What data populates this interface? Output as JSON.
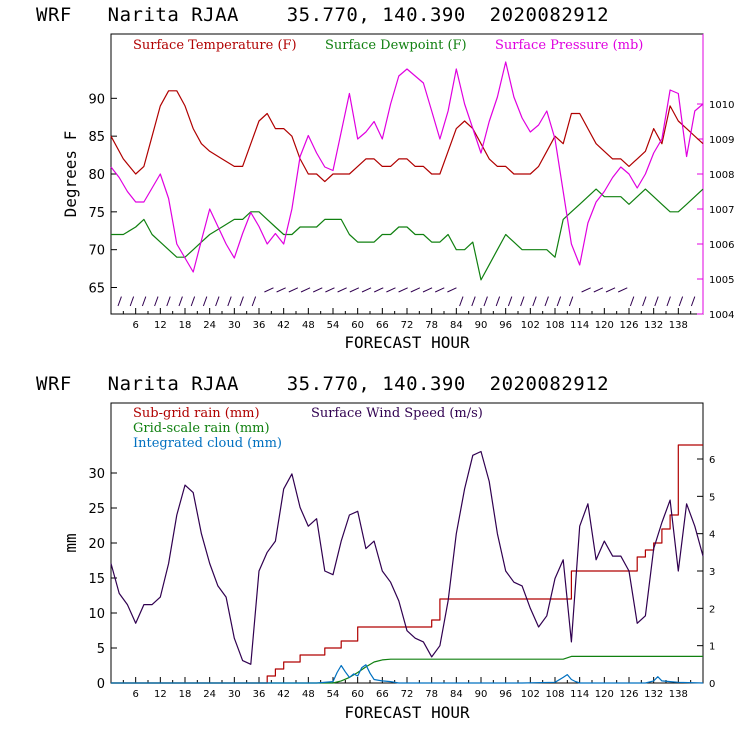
{
  "chart_data": [
    {
      "type": "line",
      "title": "WRF   Narita RJAA    35.770, 140.390  2020082912",
      "xlabel": "FORECAST HOUR",
      "ylabel": "Degrees F",
      "xlim": [
        0,
        144
      ],
      "ylim": [
        61.5,
        98.5
      ],
      "y2lim": [
        1004,
        1012
      ],
      "x_ticks": [
        6,
        12,
        18,
        24,
        30,
        36,
        42,
        48,
        54,
        60,
        66,
        72,
        78,
        84,
        90,
        96,
        102,
        108,
        114,
        120,
        126,
        132,
        138
      ],
      "y_ticks": [
        65,
        70,
        75,
        80,
        85,
        90
      ],
      "y2_ticks": [
        1004,
        1005,
        1006,
        1007,
        1008,
        1009,
        1010
      ],
      "legend": [
        "Surface Temperature (F)",
        "Surface Dewpoint (F)",
        "Surface Pressure (mb)"
      ],
      "series": [
        {
          "name": "Surface Temperature (F)",
          "axis": "left",
          "color": "#b00000",
          "x": [
            0,
            3,
            6,
            8,
            10,
            12,
            14,
            16,
            18,
            20,
            22,
            24,
            27,
            30,
            32,
            34,
            36,
            38,
            40,
            42,
            44,
            46,
            48,
            50,
            52,
            54,
            56,
            58,
            60,
            62,
            64,
            66,
            68,
            70,
            72,
            74,
            76,
            78,
            80,
            82,
            84,
            86,
            88,
            90,
            92,
            94,
            96,
            98,
            100,
            102,
            104,
            106,
            108,
            110,
            112,
            114,
            116,
            118,
            120,
            122,
            124,
            126,
            128,
            130,
            132,
            134,
            136,
            138,
            140,
            142,
            144
          ],
          "y": [
            85,
            82,
            80,
            81,
            85,
            89,
            91,
            91,
            89,
            86,
            84,
            83,
            82,
            81,
            81,
            84,
            87,
            88,
            86,
            86,
            85,
            82,
            80,
            80,
            79,
            80,
            80,
            80,
            81,
            82,
            82,
            81,
            81,
            82,
            82,
            81,
            81,
            80,
            80,
            83,
            86,
            87,
            86,
            84,
            82,
            81,
            81,
            80,
            80,
            80,
            81,
            83,
            85,
            84,
            88,
            88,
            86,
            84,
            83,
            82,
            82,
            81,
            82,
            83,
            86,
            84,
            89,
            87,
            86,
            85,
            84
          ]
        },
        {
          "name": "Surface Dewpoint (F)",
          "axis": "left",
          "color": "#108010",
          "x": [
            0,
            3,
            6,
            8,
            10,
            12,
            14,
            16,
            18,
            20,
            22,
            24,
            27,
            30,
            32,
            34,
            36,
            38,
            40,
            42,
            44,
            46,
            48,
            50,
            52,
            54,
            56,
            58,
            60,
            62,
            64,
            66,
            68,
            70,
            72,
            74,
            76,
            78,
            80,
            82,
            84,
            86,
            88,
            90,
            92,
            94,
            96,
            98,
            100,
            102,
            104,
            106,
            108,
            110,
            112,
            114,
            116,
            118,
            120,
            122,
            124,
            126,
            128,
            130,
            132,
            134,
            136,
            138,
            140,
            142,
            144
          ],
          "y": [
            72,
            72,
            73,
            74,
            72,
            71,
            70,
            69,
            69,
            70,
            71,
            72,
            73,
            74,
            74,
            75,
            75,
            74,
            73,
            72,
            72,
            73,
            73,
            73,
            74,
            74,
            74,
            72,
            71,
            71,
            71,
            72,
            72,
            73,
            73,
            72,
            72,
            71,
            71,
            72,
            70,
            70,
            71,
            66,
            68,
            70,
            72,
            71,
            70,
            70,
            70,
            70,
            69,
            74,
            75,
            76,
            77,
            78,
            77,
            77,
            77,
            76,
            77,
            78,
            77,
            76,
            75,
            75,
            76,
            77,
            78
          ]
        },
        {
          "name": "Surface Pressure (mb)",
          "axis": "right",
          "color": "#e000e0",
          "x": [
            0,
            2,
            4,
            6,
            8,
            10,
            12,
            14,
            16,
            18,
            20,
            22,
            24,
            26,
            28,
            30,
            32,
            34,
            36,
            38,
            40,
            42,
            44,
            46,
            48,
            50,
            52,
            54,
            56,
            58,
            60,
            62,
            64,
            66,
            68,
            70,
            72,
            74,
            76,
            78,
            80,
            82,
            84,
            86,
            88,
            90,
            92,
            94,
            96,
            98,
            100,
            102,
            104,
            106,
            108,
            110,
            112,
            114,
            116,
            118,
            120,
            122,
            124,
            126,
            128,
            130,
            132,
            134,
            136,
            138,
            140,
            142,
            144
          ],
          "y": [
            1008.2,
            1007.9,
            1007.5,
            1007.2,
            1007.2,
            1007.6,
            1008.0,
            1007.3,
            1006.0,
            1005.6,
            1005.2,
            1006.1,
            1007.0,
            1006.5,
            1006.0,
            1005.6,
            1006.3,
            1006.9,
            1006.5,
            1006.0,
            1006.3,
            1006.0,
            1007.0,
            1008.5,
            1009.1,
            1008.6,
            1008.2,
            1008.1,
            1009.2,
            1010.3,
            1009.0,
            1009.2,
            1009.5,
            1009.0,
            1010.0,
            1010.8,
            1011.0,
            1010.8,
            1010.6,
            1009.8,
            1009.0,
            1009.8,
            1011.0,
            1010.0,
            1009.3,
            1008.6,
            1009.5,
            1010.2,
            1011.2,
            1010.2,
            1009.6,
            1009.2,
            1009.4,
            1009.8,
            1009.0,
            1007.5,
            1006.0,
            1005.4,
            1006.6,
            1007.2,
            1007.5,
            1007.9,
            1008.2,
            1008.0,
            1007.6,
            1008.0,
            1008.6,
            1009.0,
            1010.4,
            1010.3,
            1008.5,
            1009.8,
            1010.0
          ]
        }
      ]
    },
    {
      "type": "line",
      "title": "WRF   Narita RJAA    35.770, 140.390  2020082912",
      "xlabel": "FORECAST HOUR",
      "ylabel": "mm",
      "xlim": [
        0,
        144
      ],
      "ylim": [
        0,
        40
      ],
      "y2lim": [
        0,
        7.5
      ],
      "x_ticks": [
        6,
        12,
        18,
        24,
        30,
        36,
        42,
        48,
        54,
        60,
        66,
        72,
        78,
        84,
        90,
        96,
        102,
        108,
        114,
        120,
        126,
        132,
        138
      ],
      "y_ticks": [
        0,
        5,
        10,
        15,
        20,
        25,
        30
      ],
      "y2_ticks": [
        0,
        1,
        2,
        3,
        4,
        5,
        6
      ],
      "legend": [
        "Sub-grid rain (mm)",
        "Surface Wind Speed (m/s)",
        "Grid-scale rain (mm)",
        "Integrated cloud (mm)"
      ],
      "series": [
        {
          "name": "Sub-grid rain (mm)",
          "axis": "left",
          "color": "#b00000",
          "step": true,
          "x": [
            0,
            37,
            38,
            40,
            42,
            44,
            46,
            48,
            50,
            52,
            54,
            56,
            58,
            60,
            76,
            78,
            80,
            110,
            112,
            126,
            128,
            130,
            132,
            134,
            136,
            138,
            144
          ],
          "y": [
            0,
            0,
            1,
            2,
            3,
            3,
            4,
            4,
            4,
            5,
            5,
            6,
            6,
            8,
            8,
            9,
            12,
            12,
            16,
            16,
            18,
            19,
            20,
            22,
            24,
            34,
            34
          ]
        },
        {
          "name": "Grid-scale rain (mm)",
          "axis": "left",
          "color": "#108010",
          "x": [
            0,
            54,
            56,
            58,
            60,
            62,
            64,
            66,
            68,
            80,
            100,
            110,
            112,
            130,
            144
          ],
          "y": [
            0,
            0,
            0.3,
            0.8,
            1.5,
            2.3,
            3.0,
            3.3,
            3.4,
            3.4,
            3.4,
            3.4,
            3.8,
            3.8,
            3.8
          ]
        },
        {
          "name": "Integrated cloud (mm)",
          "axis": "left",
          "color": "#0070c0",
          "x": [
            0,
            50,
            54,
            55,
            56,
            57,
            58,
            59,
            60,
            61,
            62,
            63,
            64,
            66,
            68,
            70,
            100,
            108,
            110,
            111,
            112,
            113,
            114,
            130,
            132,
            133,
            134,
            136,
            138,
            144
          ],
          "y": [
            0,
            0,
            0.2,
            1.5,
            2.5,
            1.6,
            0.8,
            1.3,
            1.0,
            2.2,
            2.6,
            1.4,
            0.5,
            0.3,
            0.2,
            0,
            0,
            0.1,
            0.8,
            1.2,
            0.5,
            0.2,
            0,
            0,
            0.3,
            0.9,
            0.3,
            0.2,
            0.1,
            0
          ]
        },
        {
          "name": "Surface Wind Speed (m/s)",
          "axis": "right",
          "color": "#300050",
          "x": [
            0,
            2,
            4,
            6,
            8,
            10,
            12,
            14,
            16,
            18,
            20,
            22,
            24,
            26,
            28,
            30,
            32,
            34,
            36,
            38,
            40,
            42,
            44,
            46,
            48,
            50,
            52,
            54,
            56,
            58,
            60,
            62,
            64,
            66,
            68,
            70,
            72,
            74,
            76,
            78,
            80,
            82,
            84,
            86,
            88,
            90,
            92,
            94,
            96,
            98,
            100,
            102,
            104,
            106,
            108,
            110,
            112,
            114,
            116,
            118,
            120,
            122,
            124,
            126,
            128,
            130,
            132,
            134,
            136,
            138,
            140,
            142,
            144
          ],
          "y": [
            3.2,
            2.4,
            2.1,
            1.6,
            2.1,
            2.1,
            2.3,
            3.2,
            4.5,
            5.3,
            5.1,
            4.0,
            3.2,
            2.6,
            2.3,
            1.2,
            0.6,
            0.5,
            3.0,
            3.5,
            3.8,
            5.2,
            5.6,
            4.7,
            4.2,
            4.4,
            3.0,
            2.9,
            3.8,
            4.5,
            4.6,
            3.6,
            3.8,
            3.0,
            2.7,
            2.2,
            1.4,
            1.2,
            1.1,
            0.7,
            1.0,
            2.2,
            4.0,
            5.2,
            6.1,
            6.2,
            5.4,
            4.0,
            3.0,
            2.7,
            2.6,
            2.0,
            1.5,
            1.8,
            2.8,
            3.3,
            1.1,
            4.2,
            4.8,
            3.3,
            3.8,
            3.4,
            3.4,
            3.0,
            1.6,
            1.8,
            3.6,
            4.3,
            4.9,
            3.0,
            4.8,
            4.2,
            3.4
          ]
        }
      ]
    }
  ]
}
